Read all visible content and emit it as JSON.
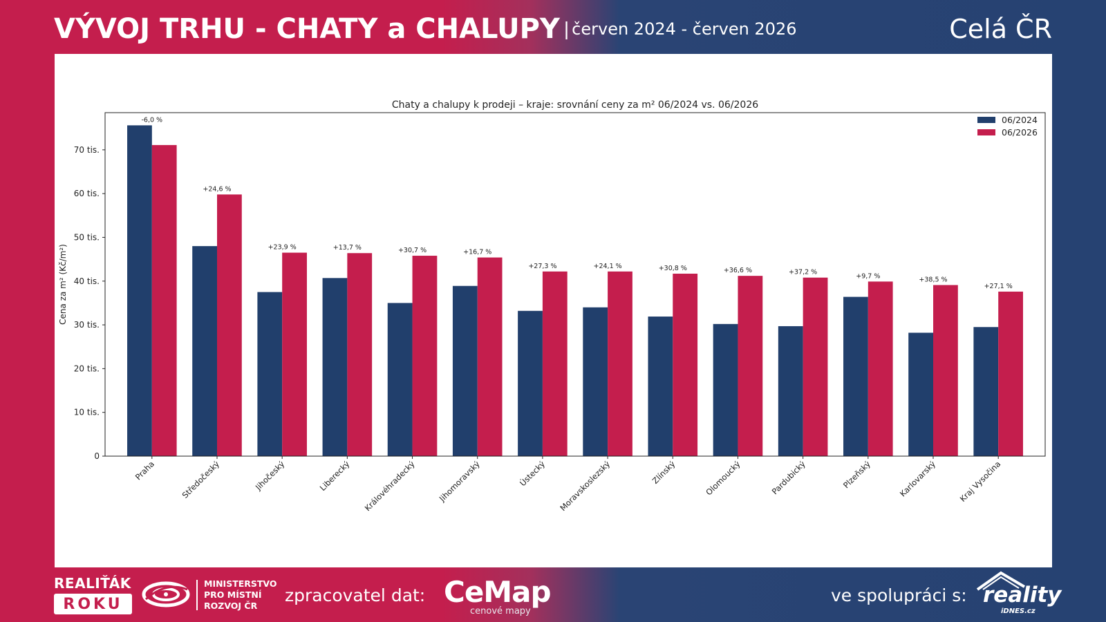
{
  "header": {
    "title": "VÝVOJ TRHU - CHATY a CHALUPY",
    "separator": "|",
    "period": "červen 2024 - červen 2026",
    "region": "Celá ČR"
  },
  "colors": {
    "series_2024": "#213f6c",
    "series_2026": "#c41e4d",
    "brand_red": "#c41e4d",
    "brand_blue": "#264272"
  },
  "chart_data": {
    "type": "bar",
    "title": "Chaty a chalupy k prodeji – kraje: srovnání ceny za m² 06/2024 vs. 06/2026",
    "xlabel": "",
    "ylabel": "Cena za m² (Kč/m²)",
    "ylim": [
      0,
      78500
    ],
    "yticks": [
      0,
      10000,
      20000,
      30000,
      40000,
      50000,
      60000,
      70000
    ],
    "ytick_labels": [
      "0",
      "10 tis.",
      "20 tis.",
      "30 tis.",
      "40 tis.",
      "50 tis.",
      "60 tis.",
      "70 tis."
    ],
    "grid": false,
    "legend_position": "top-right",
    "categories": [
      "Praha",
      "Středočeský",
      "Jihočeský",
      "Liberecký",
      "Královéhradecký",
      "Jihomoravský",
      "Ústecký",
      "Moravskoslezský",
      "Zlínský",
      "Olomoucký",
      "Pardubický",
      "Plzeňský",
      "Karlovarský",
      "Kraj Vysočina"
    ],
    "series": [
      {
        "name": "06/2024",
        "values": [
          75600,
          48000,
          37500,
          40700,
          35000,
          38900,
          33200,
          34000,
          31900,
          30200,
          29700,
          36400,
          28200,
          29500
        ]
      },
      {
        "name": "06/2026",
        "values": [
          71100,
          59800,
          46500,
          46400,
          45800,
          45400,
          42200,
          42200,
          41700,
          41200,
          40800,
          39900,
          39100,
          37600
        ]
      }
    ],
    "change_labels": [
      "-6,0 %",
      "+24,6 %",
      "+23,9 %",
      "+13,7 %",
      "+30,7 %",
      "+16,7 %",
      "+27,3 %",
      "+24,1 %",
      "+30,8 %",
      "+36,6 %",
      "+37,2 %",
      "+9,7 %",
      "+38,5 %",
      "+27,1 %"
    ]
  },
  "footer": {
    "realitak_line1": "REALIŤÁK",
    "realitak_line2": "ROKU",
    "ministry_line1": "MINISTERSTVO",
    "ministry_line2": "PRO MÍSTNÍ",
    "ministry_line3": "ROZVOJ ČR",
    "processor_label": "zpracovatel dat:",
    "cemap_word": "CeMap",
    "cemap_sub": "cenové mapy",
    "partner_label": "ve spolupráci s:",
    "reality_word": "reality",
    "reality_sub": "iDNES.cz"
  }
}
